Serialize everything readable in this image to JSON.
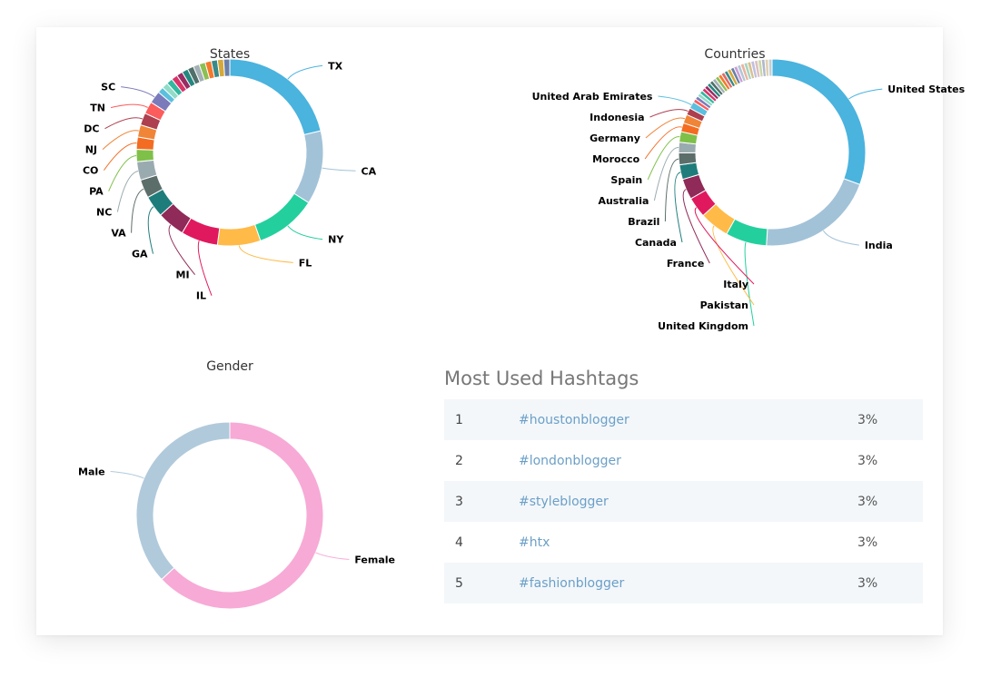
{
  "chart_data": [
    {
      "type": "pie",
      "title": "States",
      "labels": [
        "TX",
        "CA",
        "NY",
        "FL",
        "IL",
        "MI",
        "GA",
        "VA",
        "NC",
        "PA",
        "CO",
        "NJ",
        "DC",
        "TN",
        "SC",
        "",
        "",
        "",
        "",
        "",
        "",
        "",
        "",
        "",
        "",
        "",
        "",
        ""
      ],
      "values": [
        20,
        12,
        10,
        7,
        6,
        4.5,
        3.5,
        3,
        3,
        2,
        2,
        2,
        2,
        2,
        2,
        1,
        1,
        1,
        1,
        1,
        1,
        1,
        1,
        1,
        1,
        1,
        1,
        1
      ],
      "colors": [
        "#4ab3de",
        "#a2c2d8",
        "#24cf9e",
        "#ffba48",
        "#e0195e",
        "#902a58",
        "#1e7d7b",
        "#5c6e6a",
        "#9aabb0",
        "#7fc049",
        "#f36c22",
        "#f08537",
        "#ad3f4f",
        "#fc5c5c",
        "#7b7bbb",
        "#5bc0de",
        "#91dbc8",
        "#33b8a0",
        "#d9346a",
        "#992c63",
        "#24887f",
        "#52706b",
        "#a3b0b5",
        "#8cbf54",
        "#f5792b",
        "#3a8a8a",
        "#d4a83b",
        "#6a7fa8"
      ]
    },
    {
      "type": "pie",
      "title": "Countries",
      "labels": [
        "United States",
        "India",
        "United Kingdom",
        "Pakistan",
        "Italy",
        "France",
        "Canada",
        "Brazil",
        "Australia",
        "Spain",
        "Morocco",
        "Germany",
        "Indonesia",
        "United Arab Emirates",
        "",
        "",
        "",
        "",
        "",
        "",
        "",
        "",
        "",
        "",
        "",
        "",
        "",
        "",
        "",
        "",
        "",
        "",
        "",
        "",
        "",
        "",
        "",
        "",
        "",
        ""
      ],
      "values": [
        30,
        20,
        7,
        5,
        3.5,
        3.5,
        2.5,
        2,
        1.8,
        1.8,
        1.5,
        1.5,
        1.2,
        1.2,
        0.6,
        0.6,
        0.6,
        0.6,
        0.6,
        0.6,
        0.6,
        0.6,
        0.6,
        0.6,
        0.6,
        0.6,
        0.6,
        0.6,
        0.6,
        0.6,
        0.6,
        0.6,
        0.6,
        0.6,
        0.6,
        0.6,
        0.6,
        0.6,
        0.6,
        0.6
      ],
      "colors": [
        "#4ab3de",
        "#a2c2d8",
        "#24cf9e",
        "#ffba48",
        "#e0195e",
        "#902a58",
        "#1e7d7b",
        "#5c6e6a",
        "#9aabb0",
        "#7fc049",
        "#f36c22",
        "#f08537",
        "#ad3f4f",
        "#5bc0de",
        "#fc5c5c",
        "#7b7bbb",
        "#91dbc8",
        "#33b8a0",
        "#d9346a",
        "#992c63",
        "#24887f",
        "#52706b",
        "#a3b0b5",
        "#8cbf54",
        "#f5792b",
        "#e06a6a",
        "#3a8a8a",
        "#d4a83b",
        "#6a7fa8",
        "#c9a0d4",
        "#b3c7d6",
        "#e8b4a0",
        "#a8d4c0",
        "#d8c090",
        "#c0c0e0",
        "#e0c0c0",
        "#c8d8a8",
        "#b0b8d0",
        "#e0d0b0",
        "#c0d0d8"
      ]
    },
    {
      "type": "pie",
      "title": "Gender",
      "labels": [
        "Female",
        "Male"
      ],
      "values": [
        63,
        37
      ],
      "colors": [
        "#f7aad6",
        "#b1cadb"
      ]
    }
  ],
  "hashtags": {
    "heading": "Most Used Hashtags",
    "rows": [
      {
        "rank": "1",
        "tag": "#houstonblogger",
        "pct": "3%"
      },
      {
        "rank": "2",
        "tag": "#londonblogger",
        "pct": "3%"
      },
      {
        "rank": "3",
        "tag": "#styleblogger",
        "pct": "3%"
      },
      {
        "rank": "4",
        "tag": "#htx",
        "pct": "3%"
      },
      {
        "rank": "5",
        "tag": "#fashionblogger",
        "pct": "3%"
      }
    ]
  }
}
